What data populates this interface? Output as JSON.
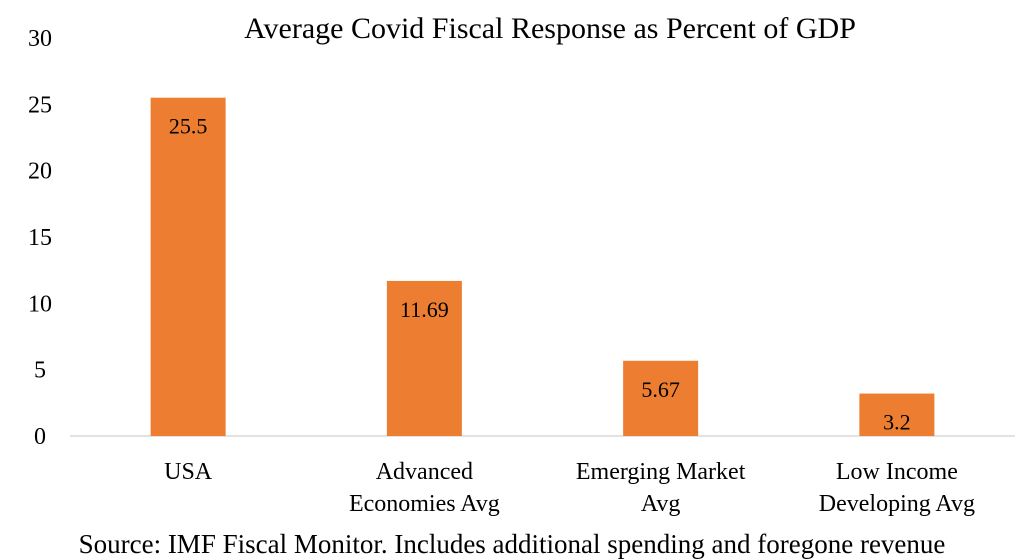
{
  "chart_data": {
    "type": "bar",
    "title": "Average Covid Fiscal Response as Percent of GDP",
    "categories": [
      [
        "USA"
      ],
      [
        "Advanced",
        "Economies Avg"
      ],
      [
        "Emerging Market",
        "Avg"
      ],
      [
        "Low Income",
        "Developing Avg"
      ]
    ],
    "values": [
      25.5,
      11.69,
      5.67,
      3.2
    ],
    "data_labels": [
      "25.5",
      "11.69",
      "5.67",
      "3.2"
    ],
    "ylim": [
      0,
      30
    ],
    "yticks": [
      "0",
      "5",
      "10",
      "15",
      "20",
      "25",
      "30"
    ],
    "grid": false,
    "legend": "none",
    "bar_color": "#ED7D31",
    "source_note": "Source: IMF Fiscal Monitor. Includes additional spending and foregone revenue"
  }
}
